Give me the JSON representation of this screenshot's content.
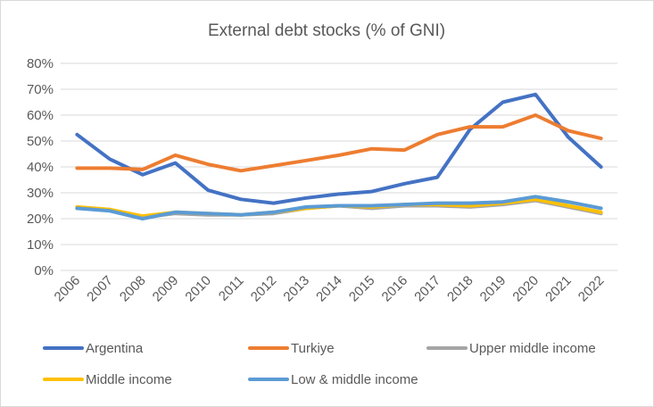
{
  "chart_data": {
    "type": "line",
    "title": "External debt stocks (% of GNI)",
    "xlabel": "",
    "ylabel": "",
    "ylim": [
      0,
      80
    ],
    "y_ticks": [
      "0%",
      "10%",
      "20%",
      "30%",
      "40%",
      "50%",
      "60%",
      "70%",
      "80%"
    ],
    "grid": true,
    "legend_position": "bottom",
    "categories": [
      "2006",
      "2007",
      "2008",
      "2009",
      "2010",
      "2011",
      "2012",
      "2013",
      "2014",
      "2015",
      "2016",
      "2017",
      "2018",
      "2019",
      "2020",
      "2021",
      "2022"
    ],
    "series": [
      {
        "name": "Argentina",
        "color": "#4472C4",
        "values": [
          52.5,
          43,
          37,
          41.5,
          31,
          27.5,
          26,
          28,
          29.5,
          30.5,
          33.5,
          36,
          54.5,
          65,
          68,
          51.5,
          40
        ]
      },
      {
        "name": "Turkiye",
        "color": "#ED7D31",
        "values": [
          39.5,
          39.5,
          39,
          44.5,
          41,
          38.5,
          40.5,
          42.5,
          44.5,
          47,
          46.5,
          52.5,
          55.5,
          55.5,
          60,
          54,
          51
        ]
      },
      {
        "name": "Upper middle income",
        "color": "#A5A5A5",
        "values": [
          24,
          23.5,
          20.5,
          22,
          21.5,
          21.5,
          22,
          24,
          25,
          24,
          25,
          25,
          24.5,
          25.5,
          27,
          24.5,
          22
        ]
      },
      {
        "name": "Middle income",
        "color": "#FFC000",
        "values": [
          24.5,
          23.5,
          21,
          22.5,
          22,
          21.5,
          22.5,
          24,
          25,
          24.5,
          25.5,
          25.5,
          25,
          26,
          27.5,
          25,
          22.5
        ]
      },
      {
        "name": "Low & middle income",
        "color": "#5B9BD5",
        "values": [
          24,
          23,
          20,
          22.5,
          22,
          21.5,
          22.5,
          24.5,
          25,
          25,
          25.5,
          26,
          26,
          26.5,
          28.5,
          26.5,
          24
        ]
      }
    ]
  }
}
